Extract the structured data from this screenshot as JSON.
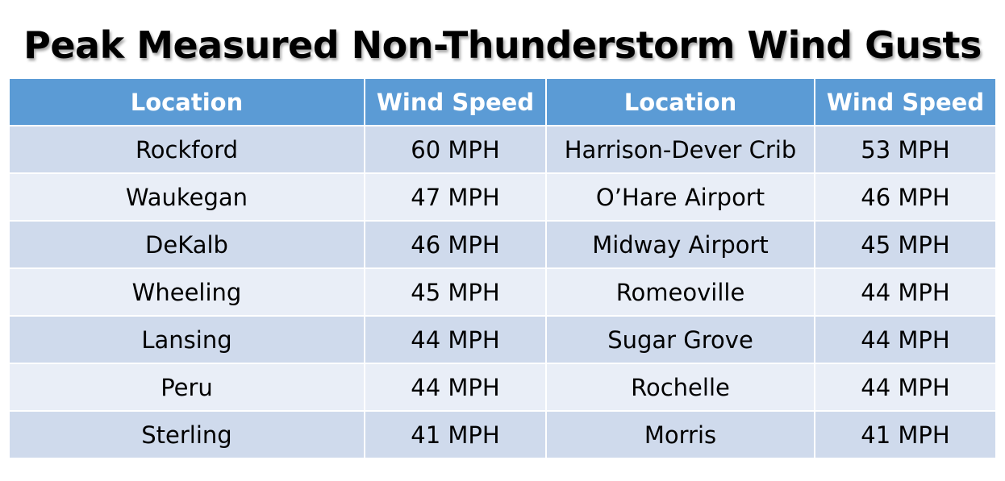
{
  "title": "Peak Measured Non-Thunderstorm Wind Gusts",
  "colors": {
    "header_bg": "#5b9bd5",
    "row_odd_bg": "#cfdaec",
    "row_even_bg": "#e9eef7"
  },
  "table": {
    "headers": [
      "Location",
      "Wind Speed",
      "Location",
      "Wind Speed"
    ],
    "rows": [
      [
        "Rockford",
        "60 MPH",
        "Harrison-Dever Crib",
        "53 MPH"
      ],
      [
        "Waukegan",
        "47 MPH",
        "O’Hare Airport",
        "46 MPH"
      ],
      [
        "DeKalb",
        "46 MPH",
        "Midway Airport",
        "45 MPH"
      ],
      [
        "Wheeling",
        "45 MPH",
        "Romeoville",
        "44 MPH"
      ],
      [
        "Lansing",
        "44 MPH",
        "Sugar Grove",
        "44 MPH"
      ],
      [
        "Peru",
        "44 MPH",
        "Rochelle",
        "44 MPH"
      ],
      [
        "Sterling",
        "41 MPH",
        "Morris",
        "41 MPH"
      ]
    ]
  }
}
